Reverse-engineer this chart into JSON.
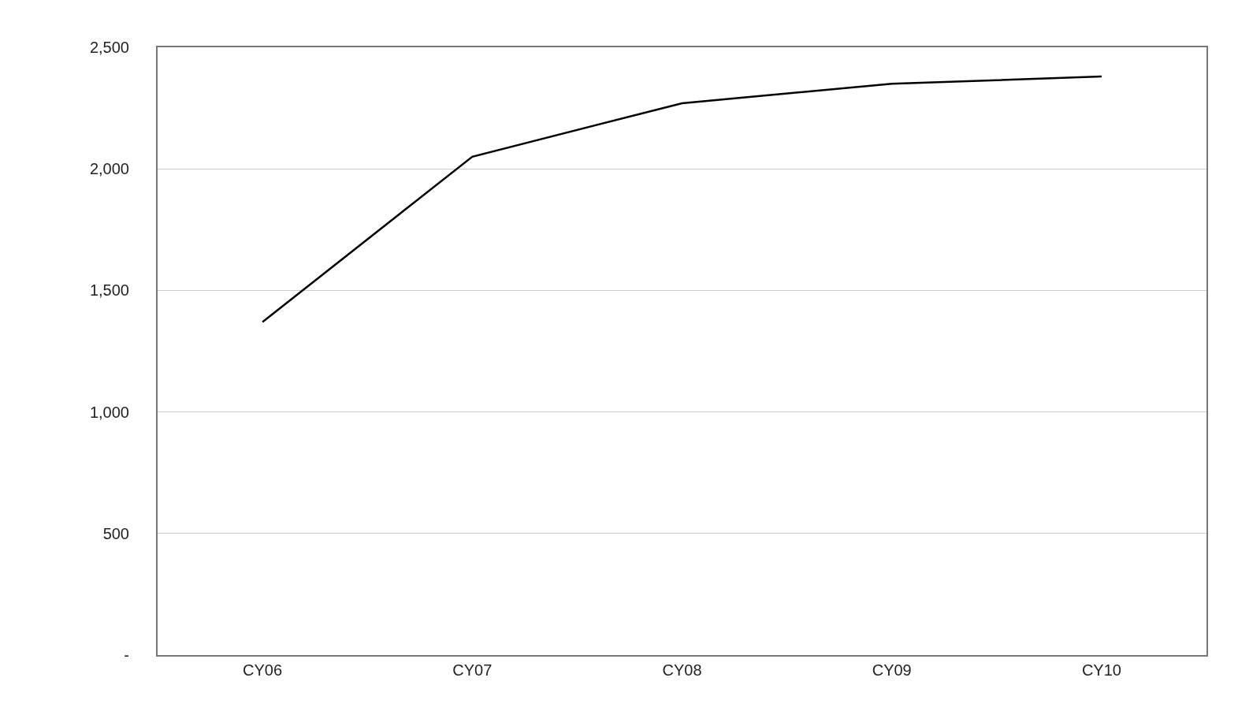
{
  "chart_data": {
    "type": "line",
    "categories": [
      "CY06",
      "CY07",
      "CY08",
      "CY09",
      "CY10"
    ],
    "series": [
      {
        "color": "#000000",
        "values": [
          1370,
          2050,
          2270,
          2350,
          2380
        ]
      }
    ],
    "ylim": [
      0,
      2500
    ],
    "yticks": [
      {
        "value": 0,
        "label": "-"
      },
      500,
      {
        "value": 1000,
        "label": "1,000"
      },
      {
        "value": 1500,
        "label": "1,500"
      },
      {
        "value": 2000,
        "label": "2,000"
      },
      {
        "value": 2500,
        "label": "2,500"
      }
    ],
    "grid": "y",
    "marker": "none",
    "line_style": "solid"
  }
}
